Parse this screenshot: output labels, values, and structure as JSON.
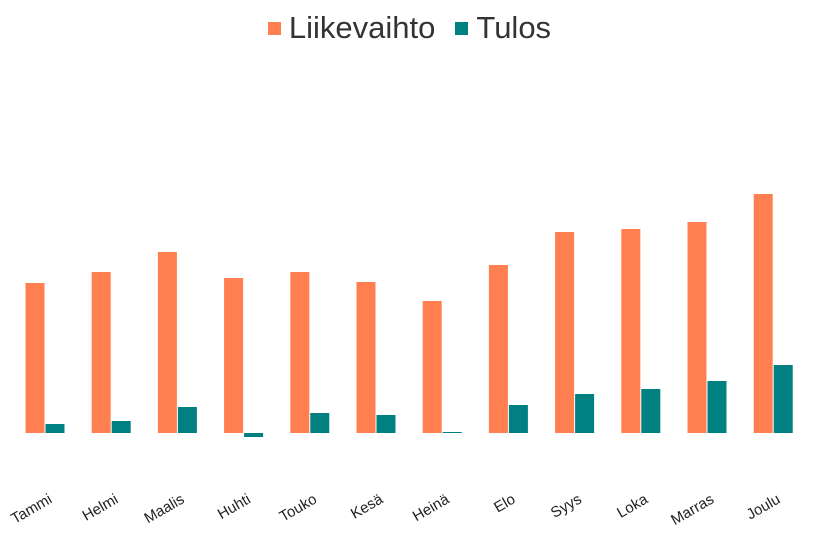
{
  "chart_data": {
    "type": "bar",
    "categories": [
      "Tammi",
      "Helmi",
      "Maalis",
      "Huhti",
      "Touko",
      "Kesä",
      "Heinä",
      "Elo",
      "Syys",
      "Loka",
      "Marras",
      "Joulu"
    ],
    "series": [
      {
        "name": "Liikevaihto",
        "color": "#FF7F50",
        "values": [
          150,
          161,
          181,
          155,
          161,
          151,
          132,
          168,
          201,
          204,
          211,
          239
        ]
      },
      {
        "name": "Tulos",
        "color": "#008080",
        "values": [
          9,
          12,
          26,
          -4,
          20,
          18,
          1,
          28,
          39,
          44,
          52,
          68
        ]
      }
    ],
    "title": "",
    "xlabel": "",
    "ylabel": "",
    "ylim": [
      -20,
      400
    ],
    "grid": false,
    "legend_position": "top-center",
    "x_tick_rotation": -30
  }
}
